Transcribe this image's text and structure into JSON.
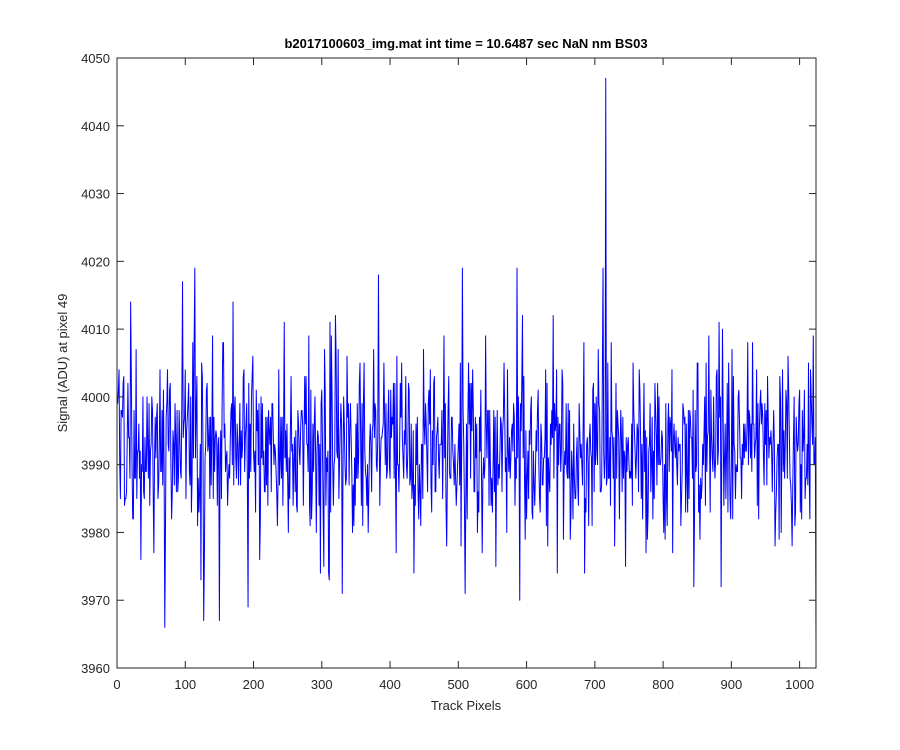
{
  "chart_data": {
    "type": "line",
    "title": "b2017100603_img.mat int time = 10.6487 sec  NaN nm BS03",
    "xlabel": "Track Pixels",
    "ylabel": "Signal (ADU) at pixel 49",
    "xlim": [
      0,
      1024
    ],
    "ylim": [
      3960,
      4050
    ],
    "xticks": [
      0,
      100,
      200,
      300,
      400,
      500,
      600,
      700,
      800,
      900,
      1000
    ],
    "yticks": [
      3960,
      3970,
      3980,
      3990,
      4000,
      4010,
      4020,
      4030,
      4040,
      4050
    ],
    "grid": false,
    "legend": "none",
    "series": [
      {
        "color": "#0000ff",
        "n_points": 1024,
        "x_start": 1,
        "baseline": 3993,
        "noise_std": 7,
        "extremes": [
          {
            "x": 1,
            "y": 3999
          },
          {
            "x": 20,
            "y": 4014
          },
          {
            "x": 35,
            "y": 3976
          },
          {
            "x": 70,
            "y": 3966
          },
          {
            "x": 96,
            "y": 4017
          },
          {
            "x": 114,
            "y": 4019
          },
          {
            "x": 123,
            "y": 3973
          },
          {
            "x": 127,
            "y": 3967
          },
          {
            "x": 150,
            "y": 3967
          },
          {
            "x": 170,
            "y": 4014
          },
          {
            "x": 192,
            "y": 3969
          },
          {
            "x": 311,
            "y": 3973
          },
          {
            "x": 320,
            "y": 4012
          },
          {
            "x": 330,
            "y": 3971
          },
          {
            "x": 383,
            "y": 4018
          },
          {
            "x": 435,
            "y": 3974
          },
          {
            "x": 506,
            "y": 4019
          },
          {
            "x": 510,
            "y": 3971
          },
          {
            "x": 586,
            "y": 4019
          },
          {
            "x": 590,
            "y": 3970
          },
          {
            "x": 712,
            "y": 4019
          },
          {
            "x": 716,
            "y": 4047
          },
          {
            "x": 845,
            "y": 3972
          },
          {
            "x": 885,
            "y": 3972
          },
          {
            "x": 1015,
            "y": 3982
          },
          {
            "x": 1024,
            "y": 3963
          }
        ]
      }
    ]
  }
}
